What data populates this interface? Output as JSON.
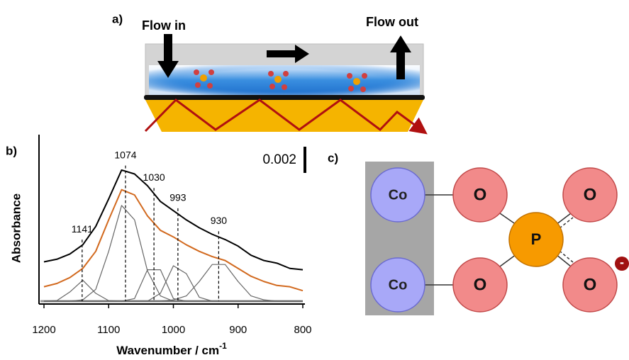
{
  "panel_a": {
    "label": "a)",
    "flow_in": "Flow in",
    "flow_out": "Flow out"
  },
  "chart_data": {
    "type": "line",
    "panel_label": "b)",
    "xlabel": "Wavenumber / cm",
    "xlabel_superscript": "-1",
    "ylabel": "Absorbance",
    "x": [
      1200,
      1180,
      1160,
      1140,
      1120,
      1100,
      1080,
      1060,
      1040,
      1020,
      1000,
      980,
      960,
      940,
      920,
      900,
      880,
      860,
      840,
      820,
      800
    ],
    "xlim": [
      1200,
      800
    ],
    "xticks": [
      1200,
      1100,
      1000,
      900,
      800
    ],
    "ylim": [
      0,
      0.0127
    ],
    "scale_bar": 0.002,
    "peaks": [
      1141,
      1074,
      1030,
      993,
      930
    ],
    "series": [
      {
        "color": "#000000",
        "values": [
          0.003,
          0.0032,
          0.0036,
          0.0043,
          0.0057,
          0.0078,
          0.01,
          0.0097,
          0.0088,
          0.0076,
          0.0069,
          0.0062,
          0.0056,
          0.0051,
          0.0047,
          0.0042,
          0.0035,
          0.0031,
          0.0029,
          0.0025,
          0.0024
        ]
      },
      {
        "color": "#d2691e",
        "values": [
          0.0011,
          0.00135,
          0.0018,
          0.0025,
          0.0038,
          0.0062,
          0.0085,
          0.0081,
          0.0065,
          0.0054,
          0.0049,
          0.0043,
          0.0038,
          0.0034,
          0.0031,
          0.0025,
          0.0019,
          0.0015,
          0.0012,
          0.0011,
          0.0008
        ]
      },
      {
        "color": "#666666",
        "values": [
          0,
          5e-05,
          0.0007,
          0.0016,
          0.0006,
          4e-05,
          0,
          0,
          0,
          0,
          0,
          0,
          0,
          0,
          0,
          0,
          0,
          0,
          0,
          0,
          0
        ]
      },
      {
        "color": "#666666",
        "values": [
          0,
          0,
          0,
          0.0001,
          0.0009,
          0.0038,
          0.0073,
          0.0062,
          0.0023,
          0.0004,
          0,
          0,
          0,
          0,
          0,
          0,
          0,
          0,
          0,
          0,
          0
        ]
      },
      {
        "color": "#666666",
        "values": [
          0,
          0,
          0,
          0,
          0,
          0,
          0,
          0.0002,
          0.0024,
          0.0024,
          0.0002,
          0,
          0,
          0,
          0,
          0,
          0,
          0,
          0,
          0,
          0
        ]
      },
      {
        "color": "#666666",
        "values": [
          0,
          0,
          0,
          0,
          0,
          0,
          0,
          0,
          0,
          0.0006,
          0.0027,
          0.0021,
          0.0003,
          0,
          0,
          0,
          0,
          0,
          0,
          0,
          0
        ]
      },
      {
        "color": "#666666",
        "values": [
          0,
          0,
          0,
          0,
          0,
          0,
          0,
          0,
          0,
          0,
          0.0001,
          0.0004,
          0.0015,
          0.0028,
          0.0028,
          0.0015,
          0.0004,
          0.0001,
          0,
          0,
          0
        ]
      }
    ]
  },
  "panel_c": {
    "label": "c)",
    "nodes": [
      "Co",
      "Co",
      "O",
      "O",
      "O",
      "O",
      "P"
    ],
    "charge": "-"
  }
}
